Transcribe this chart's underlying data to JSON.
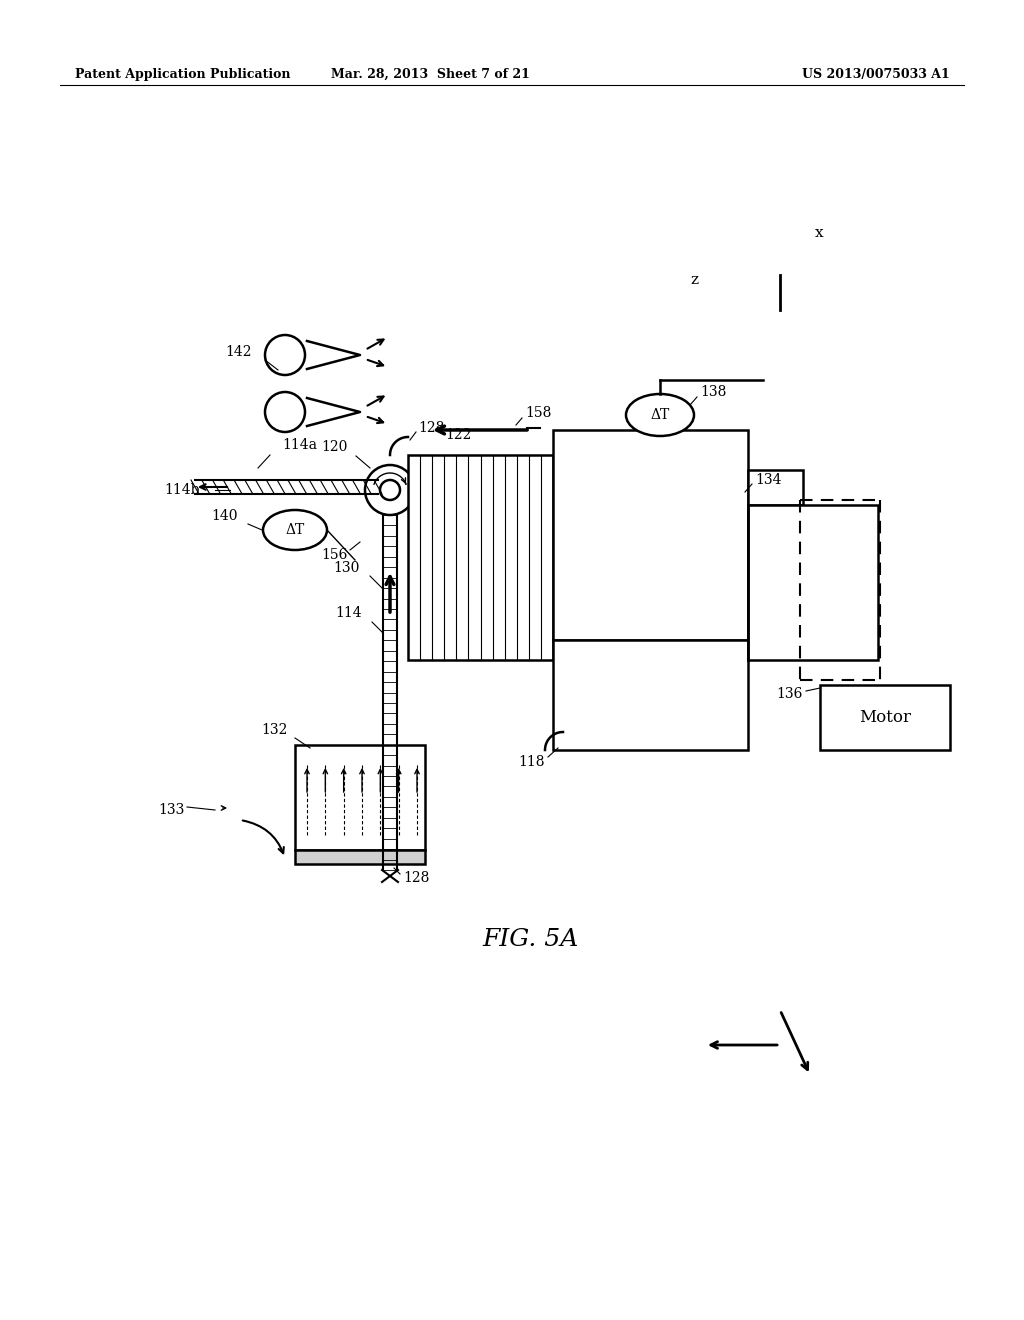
{
  "header_left": "Patent Application Publication",
  "header_mid": "Mar. 28, 2013  Sheet 7 of 21",
  "header_right": "US 2013/0075033 A1",
  "fig_label": "FIG. 5A",
  "bg_color": "#ffffff",
  "line_color": "#000000"
}
